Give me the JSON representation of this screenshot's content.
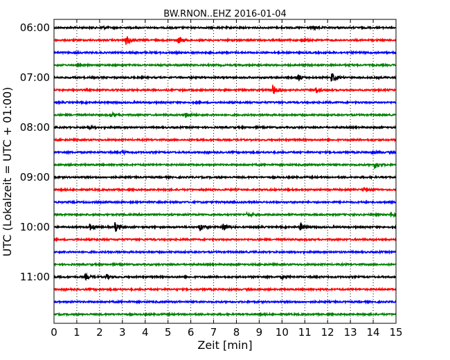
{
  "chart_data": {
    "type": "line",
    "title": "BW.RNON..EHZ 2016-01-04",
    "xlabel": "Zeit  [min]",
    "ylabel": "UTC (Lokalzeit = UTC + 01:00)",
    "xlim": [
      0,
      15
    ],
    "x_ticks": [
      "0",
      "1",
      "2",
      "3",
      "4",
      "5",
      "6",
      "7",
      "8",
      "9",
      "10",
      "11",
      "12",
      "13",
      "14",
      "15"
    ],
    "y_tick_labels": [
      "06:00",
      "07:00",
      "08:00",
      "09:00",
      "10:00",
      "11:00"
    ],
    "grid": "vertical dotted",
    "colors": [
      "#000000",
      "#ff0000",
      "#0000ff",
      "#008000"
    ],
    "trace_starts": [
      "06:00",
      "06:15",
      "06:30",
      "06:45",
      "07:00",
      "07:15",
      "07:30",
      "07:45",
      "08:00",
      "08:15",
      "08:30",
      "08:45",
      "09:00",
      "09:15",
      "09:30",
      "09:45",
      "10:00",
      "10:15",
      "10:30",
      "10:45",
      "11:00",
      "11:15",
      "11:30",
      "11:45"
    ],
    "trace_length_min": 15,
    "events": [
      {
        "trace": 0,
        "x": 2.1,
        "amp": 2
      },
      {
        "trace": 0,
        "x": 11.4,
        "amp": 2
      },
      {
        "trace": 1,
        "x": 3.2,
        "amp": 6
      },
      {
        "trace": 1,
        "x": 5.5,
        "amp": 4
      },
      {
        "trace": 1,
        "x": 10.9,
        "amp": 2
      },
      {
        "trace": 4,
        "x": 10.7,
        "amp": 4
      },
      {
        "trace": 4,
        "x": 12.2,
        "amp": 6
      },
      {
        "trace": 5,
        "x": 9.6,
        "amp": 7
      },
      {
        "trace": 5,
        "x": 11.5,
        "amp": 4
      },
      {
        "trace": 7,
        "x": 2.5,
        "amp": 3
      },
      {
        "trace": 7,
        "x": 5.8,
        "amp": 3
      },
      {
        "trace": 8,
        "x": 1.5,
        "amp": 2
      },
      {
        "trace": 10,
        "x": 3.0,
        "amp": 2
      },
      {
        "trace": 10,
        "x": 14.0,
        "amp": 2
      },
      {
        "trace": 11,
        "x": 14.1,
        "amp": 4
      },
      {
        "trace": 13,
        "x": 13.6,
        "amp": 3
      },
      {
        "trace": 15,
        "x": 8.5,
        "amp": 3
      },
      {
        "trace": 15,
        "x": 14.8,
        "amp": 3
      },
      {
        "trace": 16,
        "x": 1.6,
        "amp": 4
      },
      {
        "trace": 16,
        "x": 2.7,
        "amp": 6
      },
      {
        "trace": 16,
        "x": 6.4,
        "amp": 5
      },
      {
        "trace": 16,
        "x": 7.4,
        "amp": 6
      },
      {
        "trace": 16,
        "x": 10.8,
        "amp": 5
      },
      {
        "trace": 20,
        "x": 1.4,
        "amp": 3
      },
      {
        "trace": 20,
        "x": 2.3,
        "amp": 3
      },
      {
        "trace": 20,
        "x": 10.0,
        "amp": 2
      }
    ]
  }
}
